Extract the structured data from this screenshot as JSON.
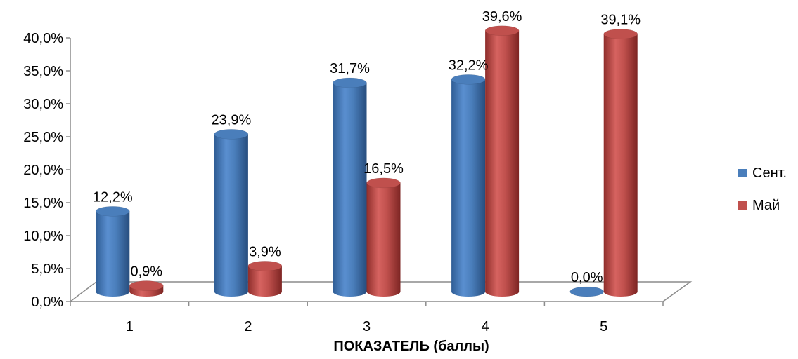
{
  "chart_data": {
    "type": "bar",
    "categories": [
      "1",
      "2",
      "3",
      "4",
      "5"
    ],
    "series": [
      {
        "name": "Сент.",
        "color": "#4a7ebb",
        "values": [
          12.2,
          23.9,
          31.7,
          32.2,
          0.0
        ],
        "labels": [
          "12,2%",
          "23,9%",
          "31,7%",
          "32,2%",
          "0,0%"
        ]
      },
      {
        "name": "Май",
        "color": "#c0504d",
        "values": [
          0.9,
          3.9,
          16.5,
          39.6,
          39.1
        ],
        "labels": [
          "0,9%",
          "3,9%",
          "16,5%",
          "39,6%",
          "39,1%"
        ]
      }
    ],
    "yticks": [
      "0,0%",
      "5,0%",
      "10,0%",
      "15,0%",
      "20,0%",
      "25,0%",
      "30,0%",
      "35,0%",
      "40,0%"
    ],
    "ylim": [
      0,
      40
    ],
    "xlabel": "ПОКАЗАТЕЛЬ (баллы)",
    "ylabel": "",
    "legend_position": "right"
  }
}
